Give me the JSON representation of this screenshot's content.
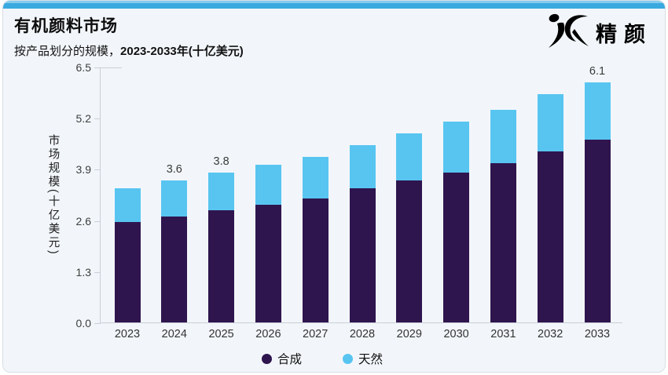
{
  "page": {
    "title": "有机颜料市场",
    "subtitle_regular": "按产品划分的规模，",
    "subtitle_bold": "2023-2033年(十亿美元)"
  },
  "logo": {
    "monogram": "JC",
    "text": "精颜",
    "color": "#832DE"
  },
  "colors": {
    "topbar_blue": "#3AA9DF",
    "card_background": "#F2F6FA",
    "axis_line": "#C9CFD8",
    "synthetic_purple": "#2F154E",
    "natural_blue": "#58C5F1"
  },
  "chart_data": {
    "type": "bar",
    "stacked": true,
    "title": "有机颜料市场",
    "subtitle": "按产品划分的规模，2023-2033年(十亿美元)",
    "xlabel": "",
    "ylabel": "市场规模(十亿美元)",
    "categories": [
      "2023",
      "2024",
      "2025",
      "2026",
      "2027",
      "2028",
      "2029",
      "2030",
      "2031",
      "2032",
      "2033"
    ],
    "series": [
      {
        "name": "合成",
        "color": "#2F154E",
        "values": [
          2.55,
          2.7,
          2.85,
          3.0,
          3.15,
          3.4,
          3.6,
          3.8,
          4.05,
          4.35,
          4.65
        ]
      },
      {
        "name": "天然",
        "color": "#58C5F1",
        "values": [
          0.85,
          0.9,
          0.95,
          1.0,
          1.05,
          1.1,
          1.2,
          1.3,
          1.35,
          1.45,
          1.45
        ]
      }
    ],
    "totals": [
      3.4,
      3.6,
      3.8,
      4.0,
      4.2,
      4.5,
      4.8,
      5.1,
      5.4,
      5.8,
      6.1
    ],
    "total_labels": {
      "2024": "3.6",
      "2025": "3.8",
      "2033": "6.1"
    },
    "yticks": [
      "0.0",
      "1.3",
      "2.6",
      "3.9",
      "5.2",
      "6.5"
    ],
    "ylim": [
      0,
      6.5
    ],
    "grid": false,
    "legend_position": "bottom"
  }
}
